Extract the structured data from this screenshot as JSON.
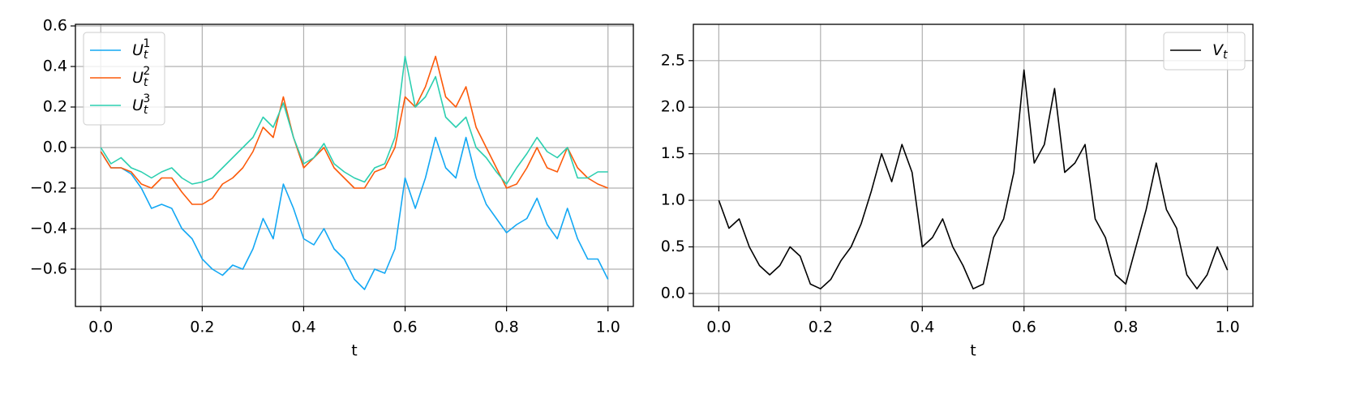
{
  "chart_data": [
    {
      "type": "line",
      "xlabel": "t",
      "xlim": [
        -0.05,
        1.05
      ],
      "ylim": [
        -0.784,
        0.608
      ],
      "xticks": [
        {
          "value": 0,
          "label": "0.0"
        },
        0.2,
        0.4,
        0.6,
        0.8,
        {
          "value": 1,
          "label": "1.0"
        }
      ],
      "yticks": [
        {
          "value": -0.6,
          "label": "−0.6"
        },
        {
          "value": -0.4,
          "label": "−0.4"
        },
        {
          "value": -0.2,
          "label": "−0.2"
        },
        {
          "value": 0,
          "label": "0.0"
        },
        0.2,
        0.4,
        0.6
      ],
      "grid": true,
      "legend": "upper-left",
      "x": [
        0,
        0.02,
        0.04,
        0.06,
        0.08,
        0.1,
        0.12,
        0.14,
        0.16,
        0.18,
        0.2,
        0.22,
        0.24,
        0.26,
        0.28,
        0.3,
        0.32,
        0.34,
        0.36,
        0.38,
        0.4,
        0.42,
        0.44,
        0.46,
        0.48,
        0.5,
        0.52,
        0.54,
        0.56,
        0.58,
        0.6,
        0.62,
        0.64,
        0.66,
        0.68,
        0.7,
        0.72,
        0.74,
        0.76,
        0.78,
        0.8,
        0.82,
        0.84,
        0.86,
        0.88,
        0.9,
        0.92,
        0.94,
        0.96,
        0.98,
        1
      ],
      "series": [
        {
          "name": "U_t^1",
          "color": "#13a8f4",
          "values": [
            -0.02,
            -0.1,
            -0.1,
            -0.13,
            -0.2,
            -0.3,
            -0.28,
            -0.3,
            -0.4,
            -0.45,
            -0.55,
            -0.6,
            -0.63,
            -0.58,
            -0.6,
            -0.5,
            -0.35,
            -0.45,
            -0.18,
            -0.3,
            -0.45,
            -0.48,
            -0.4,
            -0.5,
            -0.55,
            -0.65,
            -0.7,
            -0.6,
            -0.62,
            -0.5,
            -0.15,
            -0.3,
            -0.15,
            0.05,
            -0.1,
            -0.15,
            0.05,
            -0.15,
            -0.28,
            -0.35,
            -0.42,
            -0.38,
            -0.35,
            -0.25,
            -0.38,
            -0.45,
            -0.3,
            -0.45,
            -0.55,
            -0.55,
            -0.65
          ]
        },
        {
          "name": "U_t^2",
          "color": "#fc5a0a",
          "values": [
            -0.02,
            -0.1,
            -0.1,
            -0.12,
            -0.18,
            -0.2,
            -0.15,
            -0.15,
            -0.22,
            -0.28,
            -0.28,
            -0.25,
            -0.18,
            -0.15,
            -0.1,
            -0.02,
            0.1,
            0.05,
            0.25,
            0.05,
            -0.1,
            -0.05,
            0,
            -0.1,
            -0.15,
            -0.2,
            -0.2,
            -0.12,
            -0.1,
            0,
            0.25,
            0.2,
            0.3,
            0.45,
            0.25,
            0.2,
            0.3,
            0.1,
            0,
            -0.1,
            -0.2,
            -0.18,
            -0.1,
            0,
            -0.1,
            -0.12,
            0,
            -0.1,
            -0.15,
            -0.18,
            -0.2
          ]
        },
        {
          "name": "U_t^3",
          "color": "#2ccfb0",
          "values": [
            0,
            -0.08,
            -0.05,
            -0.1,
            -0.12,
            -0.15,
            -0.12,
            -0.1,
            -0.15,
            -0.18,
            -0.17,
            -0.15,
            -0.1,
            -0.05,
            0,
            0.05,
            0.15,
            0.1,
            0.22,
            0.05,
            -0.08,
            -0.05,
            0.02,
            -0.08,
            -0.12,
            -0.15,
            -0.17,
            -0.1,
            -0.08,
            0.05,
            0.45,
            0.2,
            0.25,
            0.35,
            0.15,
            0.1,
            0.15,
            0,
            -0.05,
            -0.12,
            -0.18,
            -0.1,
            -0.03,
            0.05,
            -0.02,
            -0.05,
            0,
            -0.15,
            -0.15,
            -0.12,
            -0.12
          ]
        }
      ]
    },
    {
      "type": "line",
      "xlabel": "t",
      "xlim": [
        -0.05,
        1.05
      ],
      "ylim": [
        -0.14,
        2.89
      ],
      "xticks": [
        {
          "value": 0,
          "label": "0.0"
        },
        0.2,
        0.4,
        0.6,
        0.8,
        {
          "value": 1,
          "label": "1.0"
        }
      ],
      "yticks": [
        {
          "value": 0,
          "label": "0.0"
        },
        0.5,
        {
          "value": 1,
          "label": "1.0"
        },
        1.5,
        {
          "value": 2,
          "label": "2.0"
        },
        2.5
      ],
      "grid": true,
      "legend": "upper-right",
      "x": [
        0,
        0.02,
        0.04,
        0.06,
        0.08,
        0.1,
        0.12,
        0.14,
        0.16,
        0.18,
        0.2,
        0.22,
        0.24,
        0.26,
        0.28,
        0.3,
        0.32,
        0.34,
        0.36,
        0.38,
        0.4,
        0.42,
        0.44,
        0.46,
        0.48,
        0.5,
        0.52,
        0.54,
        0.56,
        0.58,
        0.6,
        0.62,
        0.64,
        0.66,
        0.68,
        0.7,
        0.72,
        0.74,
        0.76,
        0.78,
        0.8,
        0.82,
        0.84,
        0.86,
        0.88,
        0.9,
        0.92,
        0.94,
        0.96,
        0.98,
        1
      ],
      "series": [
        {
          "name": "V_t",
          "color": "#000000",
          "values": [
            1.0,
            0.7,
            0.8,
            0.5,
            0.3,
            0.2,
            0.3,
            0.5,
            0.4,
            0.1,
            0.05,
            0.15,
            0.35,
            0.5,
            0.75,
            1.1,
            1.5,
            1.2,
            1.6,
            1.3,
            0.5,
            0.6,
            0.8,
            0.5,
            0.3,
            0.05,
            0.1,
            0.6,
            0.8,
            1.3,
            2.4,
            1.4,
            1.6,
            2.2,
            1.3,
            1.4,
            1.6,
            0.8,
            0.6,
            0.2,
            0.1,
            0.5,
            0.9,
            1.4,
            0.9,
            0.7,
            0.2,
            0.05,
            0.2,
            0.5,
            0.25
          ]
        }
      ]
    }
  ]
}
